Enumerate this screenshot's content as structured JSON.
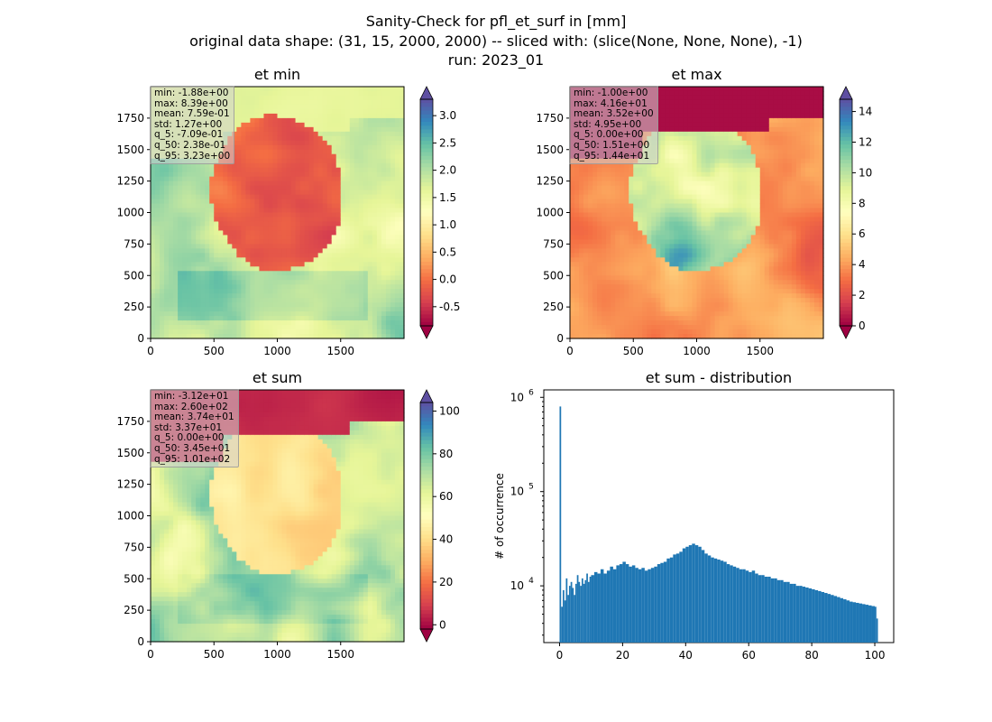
{
  "suptitle": {
    "line1": "Sanity-Check for pfl_et_surf in [mm]",
    "line2": "original data shape: (31, 15, 2000, 2000) -- sliced with: (slice(None, None, None), -1)",
    "line3": "run: 2023_01"
  },
  "colors": {
    "hist_bar": "#1f77b4",
    "axis": "#000000"
  },
  "panels": [
    {
      "title": "et min",
      "stats": [
        "min: -1.88e+00",
        "max: 8.39e+00",
        "mean: 7.59e-01",
        "std: 1.27e+00",
        "q_5: -7.09e-01",
        "q_50: 2.38e-01",
        "q_95: 3.23e+00"
      ],
      "xticks": [
        "0",
        "500",
        "1000",
        "1500"
      ],
      "yticks": [
        "0",
        "250",
        "500",
        "750",
        "1000",
        "1250",
        "1500",
        "1750"
      ],
      "colorbar": {
        "ticks": [
          "3.0",
          "2.5",
          "2.0",
          "1.5",
          "1.0",
          "0.5",
          "0.0",
          "-0.5"
        ],
        "vmin": -0.85,
        "vmax": 3.3
      }
    },
    {
      "title": "et max",
      "stats": [
        "min: -1.00e+00",
        "max: 4.16e+01",
        "mean: 3.52e+00",
        "std: 4.95e+00",
        "q_5: 0.00e+00",
        "q_50: 1.51e+00",
        "q_95: 1.44e+01"
      ],
      "xticks": [
        "0",
        "500",
        "1000",
        "1500"
      ],
      "yticks": [
        "0",
        "250",
        "500",
        "750",
        "1000",
        "1250",
        "1500",
        "1750"
      ],
      "colorbar": {
        "ticks": [
          "14",
          "12",
          "10",
          "8",
          "6",
          "4",
          "2",
          "0"
        ],
        "vmin": 0,
        "vmax": 14.8
      }
    },
    {
      "title": "et sum",
      "stats": [
        "min: -3.12e+01",
        "max: 2.60e+02",
        "mean: 3.74e+01",
        "std: 3.37e+01",
        "q_5: 0.00e+00",
        "q_50: 3.45e+01",
        "q_95: 1.01e+02"
      ],
      "xticks": [
        "0",
        "500",
        "1000",
        "1500"
      ],
      "yticks": [
        "0",
        "250",
        "500",
        "750",
        "1000",
        "1250",
        "1500",
        "1750"
      ],
      "colorbar": {
        "ticks": [
          "100",
          "80",
          "60",
          "40",
          "20",
          "0"
        ],
        "vmin": -2,
        "vmax": 104
      }
    }
  ],
  "chart_data": {
    "type": "histogram",
    "title": "et sum - distribution",
    "xlabel": "",
    "ylabel": "# of occurrence",
    "yscale": "log",
    "xticks": [
      "0",
      "20",
      "40",
      "60",
      "80",
      "100"
    ],
    "yticks": [
      "10^4",
      "10^5",
      "10^6"
    ],
    "xlim": [
      -5,
      106
    ],
    "ylim": [
      2500,
      1200000
    ],
    "bins": [
      [
        0.0,
        800000
      ],
      [
        0.5,
        6000
      ],
      [
        1.0,
        9000
      ],
      [
        1.5,
        7000
      ],
      [
        2.0,
        12000
      ],
      [
        2.5,
        8000
      ],
      [
        3.0,
        10000
      ],
      [
        3.5,
        11000
      ],
      [
        4.0,
        9500
      ],
      [
        4.5,
        8000
      ],
      [
        5.0,
        10500
      ],
      [
        5.5,
        13000
      ],
      [
        6.0,
        11000
      ],
      [
        6.5,
        10000
      ],
      [
        7.0,
        12000
      ],
      [
        7.5,
        10500
      ],
      [
        8.0,
        11500
      ],
      [
        8.5,
        13500
      ],
      [
        9.0,
        11000
      ],
      [
        9.5,
        12500
      ],
      [
        10.0,
        13000
      ],
      [
        11.0,
        14000
      ],
      [
        12.0,
        13500
      ],
      [
        13.0,
        15000
      ],
      [
        14.0,
        13500
      ],
      [
        15.0,
        14500
      ],
      [
        16.0,
        16000
      ],
      [
        17.0,
        15000
      ],
      [
        18.0,
        16500
      ],
      [
        19.0,
        17000
      ],
      [
        20.0,
        18000
      ],
      [
        21.0,
        17000
      ],
      [
        22.0,
        16000
      ],
      [
        23.0,
        16500
      ],
      [
        24.0,
        15500
      ],
      [
        25.0,
        15000
      ],
      [
        26.0,
        15500
      ],
      [
        27.0,
        14500
      ],
      [
        28.0,
        15000
      ],
      [
        29.0,
        15500
      ],
      [
        30.0,
        16000
      ],
      [
        31.0,
        17000
      ],
      [
        32.0,
        17500
      ],
      [
        33.0,
        18000
      ],
      [
        34.0,
        19500
      ],
      [
        35.0,
        20000
      ],
      [
        36.0,
        21500
      ],
      [
        37.0,
        22000
      ],
      [
        38.0,
        23000
      ],
      [
        39.0,
        25000
      ],
      [
        40.0,
        26000
      ],
      [
        41.0,
        27000
      ],
      [
        42.0,
        28000
      ],
      [
        43.0,
        27000
      ],
      [
        44.0,
        26000
      ],
      [
        45.0,
        24000
      ],
      [
        46.0,
        22000
      ],
      [
        47.0,
        21000
      ],
      [
        48.0,
        20000
      ],
      [
        49.0,
        19500
      ],
      [
        50.0,
        19000
      ],
      [
        51.0,
        18500
      ],
      [
        52.0,
        18000
      ],
      [
        53.0,
        17000
      ],
      [
        54.0,
        16500
      ],
      [
        55.0,
        16000
      ],
      [
        56.0,
        15500
      ],
      [
        57.0,
        15000
      ],
      [
        58.0,
        15000
      ],
      [
        59.0,
        14500
      ],
      [
        60.0,
        14000
      ],
      [
        61.0,
        14500
      ],
      [
        62.0,
        13500
      ],
      [
        63.0,
        13000
      ],
      [
        64.0,
        13000
      ],
      [
        65.0,
        12500
      ],
      [
        66.0,
        12500
      ],
      [
        67.0,
        12000
      ],
      [
        68.0,
        12000
      ],
      [
        69.0,
        11500
      ],
      [
        70.0,
        11500
      ],
      [
        71.0,
        11000
      ],
      [
        72.0,
        11000
      ],
      [
        73.0,
        10500
      ],
      [
        74.0,
        10500
      ],
      [
        75.0,
        10000
      ],
      [
        76.0,
        10000
      ],
      [
        77.0,
        9800
      ],
      [
        78.0,
        9600
      ],
      [
        79.0,
        9400
      ],
      [
        80.0,
        9200
      ],
      [
        81.0,
        9000
      ],
      [
        82.0,
        8800
      ],
      [
        83.0,
        8600
      ],
      [
        84.0,
        8400
      ],
      [
        85.0,
        8200
      ],
      [
        86.0,
        8000
      ],
      [
        87.0,
        7800
      ],
      [
        88.0,
        7600
      ],
      [
        89.0,
        7400
      ],
      [
        90.0,
        7200
      ],
      [
        91.0,
        7000
      ],
      [
        92.0,
        6800
      ],
      [
        93.0,
        6700
      ],
      [
        94.0,
        6600
      ],
      [
        95.0,
        6500
      ],
      [
        96.0,
        6400
      ],
      [
        97.0,
        6300
      ],
      [
        98.0,
        6200
      ],
      [
        99.0,
        6100
      ],
      [
        100.0,
        6000
      ],
      [
        100.5,
        4500
      ]
    ]
  }
}
